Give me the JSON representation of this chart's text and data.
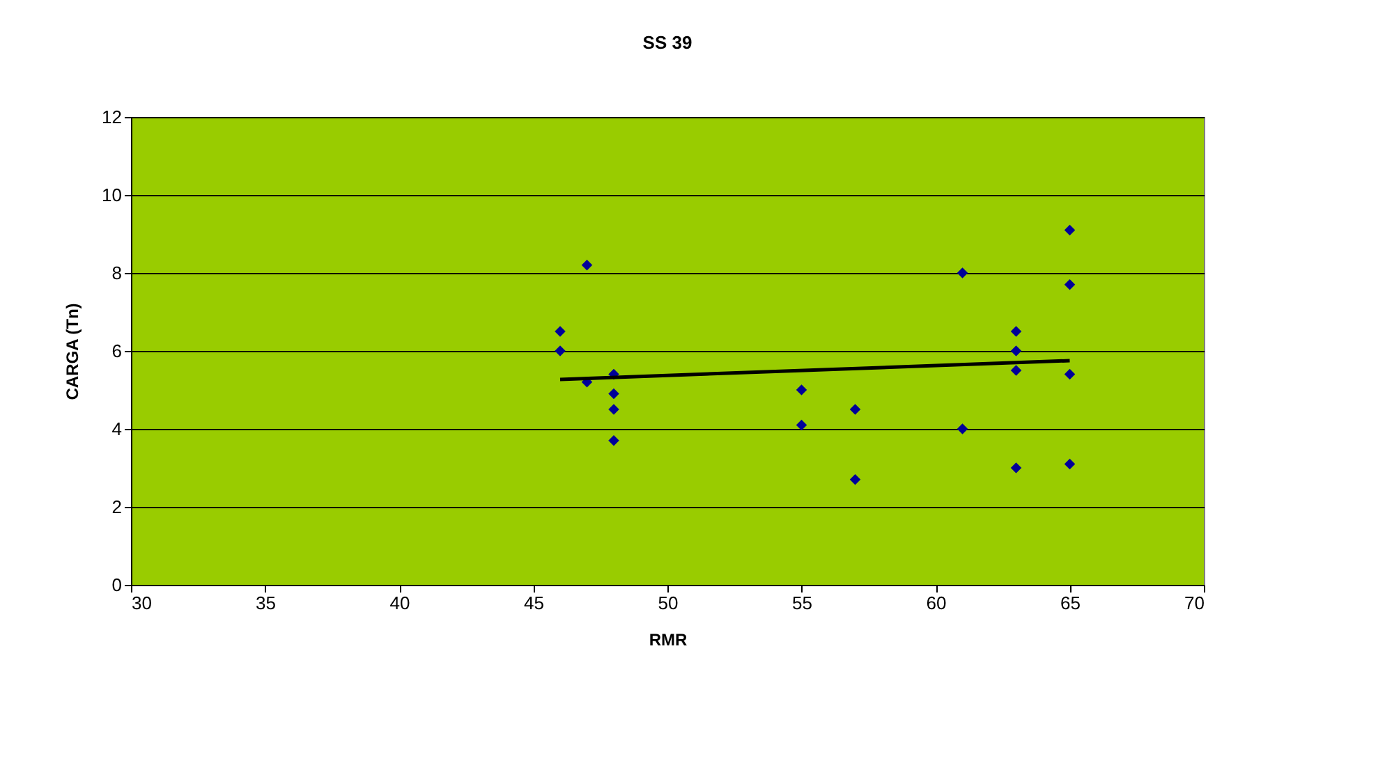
{
  "chart_data": {
    "type": "scatter",
    "title": "SS 39",
    "xlabel": "RMR",
    "ylabel": "CARGA (Tn)",
    "xlim": [
      30,
      70
    ],
    "xticks": [
      30,
      35,
      40,
      45,
      50,
      55,
      60,
      65,
      70
    ],
    "ylim": [
      0,
      12
    ],
    "yticks": [
      0,
      2,
      4,
      6,
      8,
      10,
      12
    ],
    "grid": "y",
    "series": [
      {
        "color": "#000099",
        "marker": "diamond",
        "x": [
          46,
          46,
          47,
          47,
          48,
          48,
          48,
          48,
          55,
          55,
          57,
          57,
          61,
          61,
          63,
          63,
          63,
          63,
          65,
          65,
          65,
          65
        ],
        "values": [
          6.5,
          6.0,
          8.2,
          5.2,
          5.4,
          4.9,
          4.5,
          3.7,
          5.0,
          4.1,
          4.5,
          2.7,
          8.0,
          4.0,
          6.5,
          6.0,
          5.5,
          3.0,
          9.1,
          7.7,
          5.4,
          3.1
        ]
      },
      {
        "type": "line",
        "color": "#000000",
        "x": [
          46,
          65
        ],
        "values": [
          5.27,
          5.75
        ],
        "line_style": "solid"
      }
    ]
  }
}
